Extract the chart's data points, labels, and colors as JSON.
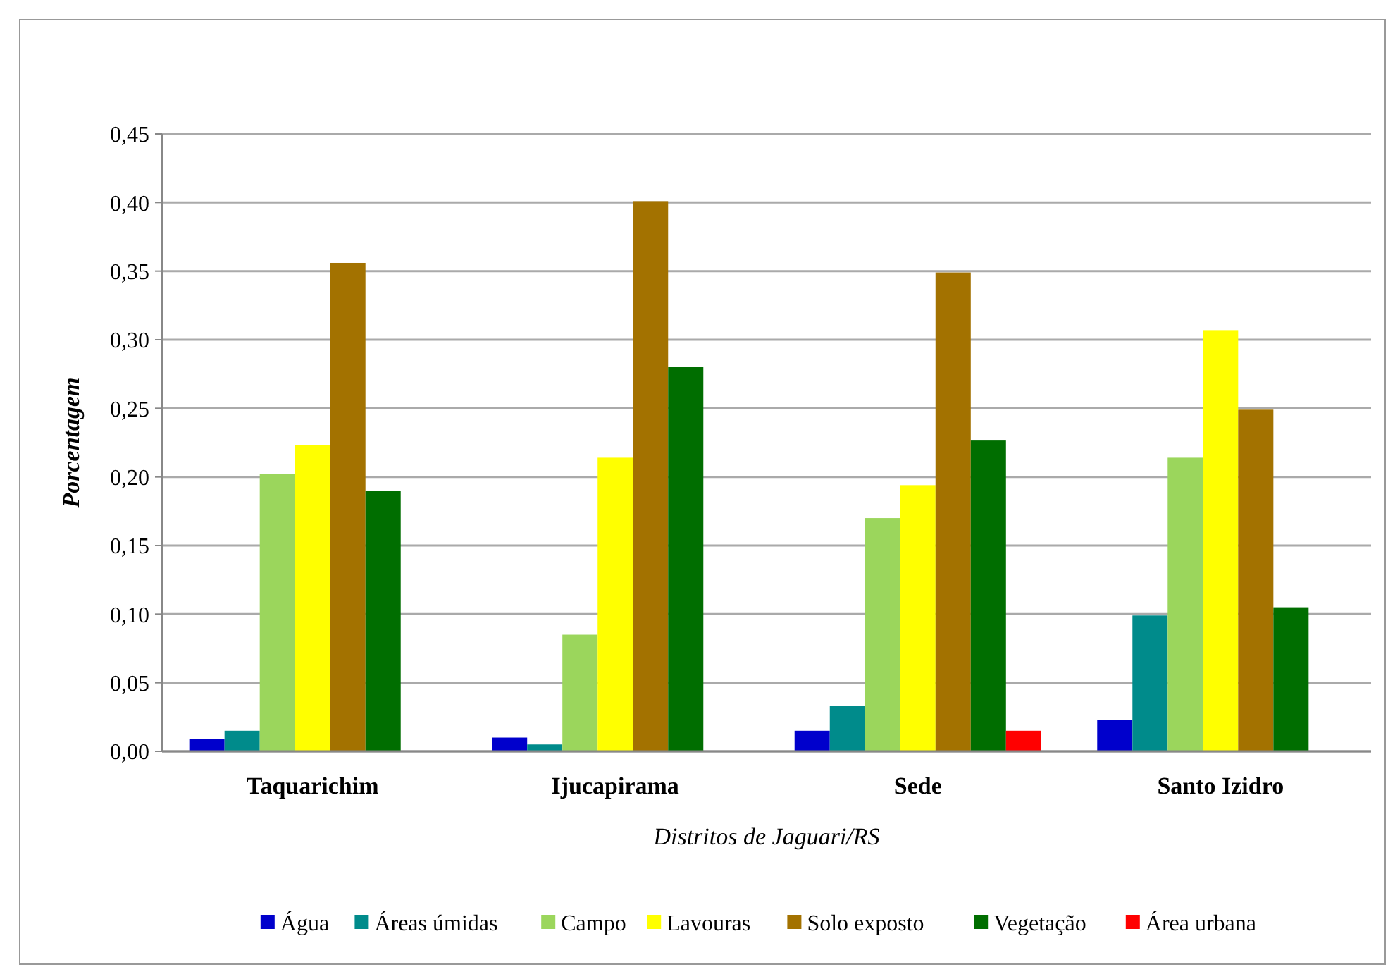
{
  "chart_data": {
    "type": "bar",
    "xlabel": "Distritos de Jaguari/RS",
    "ylabel": "Porcentagem",
    "categories": [
      "Taquarichim",
      "Ijucapirama",
      "Sede",
      "Santo Izidro"
    ],
    "series": [
      {
        "name": "Água",
        "color": "#0000cc",
        "values": [
          0.009,
          0.01,
          0.015,
          0.023
        ]
      },
      {
        "name": "Áreas úmidas",
        "color": "#008b8b",
        "values": [
          0.015,
          0.005,
          0.033,
          0.099
        ]
      },
      {
        "name": "Campo",
        "color": "#9bd65c",
        "values": [
          0.202,
          0.085,
          0.17,
          0.214
        ]
      },
      {
        "name": "Lavouras",
        "color": "#ffff00",
        "values": [
          0.223,
          0.214,
          0.194,
          0.307
        ]
      },
      {
        "name": "Solo exposto",
        "color": "#a37200",
        "values": [
          0.356,
          0.401,
          0.349,
          0.249
        ]
      },
      {
        "name": "Vegetação",
        "color": "#006e00",
        "values": [
          0.19,
          0.28,
          0.227,
          0.105
        ]
      },
      {
        "name": "Área urbana",
        "color": "#ff0000",
        "values": [
          0,
          0,
          0.015,
          0
        ]
      }
    ],
    "ylim": [
      0,
      0.45
    ],
    "yticks": [
      {
        "value": 0,
        "label": "0,00"
      },
      {
        "value": 0.05,
        "label": "0,05"
      },
      {
        "value": 0.1,
        "label": "0,10"
      },
      {
        "value": 0.15,
        "label": "0,15"
      },
      {
        "value": 0.2,
        "label": "0,20"
      },
      {
        "value": 0.25,
        "label": "0,25"
      },
      {
        "value": 0.3,
        "label": "0,30"
      },
      {
        "value": 0.35,
        "label": "0,35"
      },
      {
        "value": 0.4,
        "label": "0,40"
      },
      {
        "value": 0.45,
        "label": "0,45"
      }
    ],
    "grid": "y",
    "legend": "bottom"
  }
}
